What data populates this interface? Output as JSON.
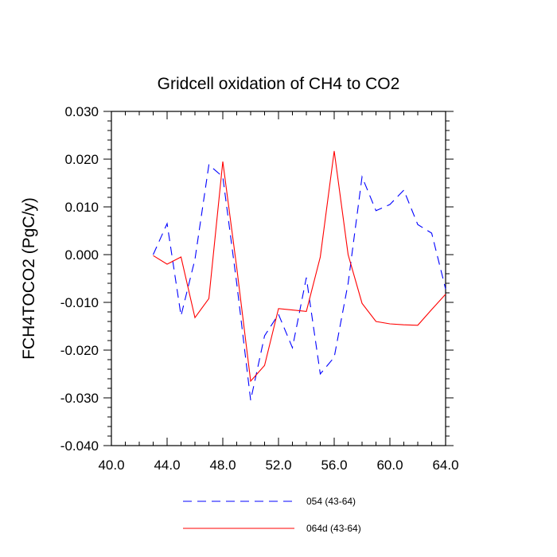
{
  "chart_data": {
    "type": "line",
    "title": "Gridcell oxidation of CH4 to CO2",
    "xlabel": "",
    "ylabel": "FCH4TOCO2  (PgC/y)",
    "xlim": [
      40,
      64
    ],
    "ylim": [
      -0.04,
      0.03
    ],
    "x_ticks": [
      40,
      44,
      48,
      52,
      56,
      60,
      64
    ],
    "x_tick_labels": [
      "40.0",
      "44.0",
      "48.0",
      "52.0",
      "56.0",
      "60.0",
      "64.0"
    ],
    "y_ticks": [
      -0.04,
      -0.03,
      -0.02,
      -0.01,
      0.0,
      0.01,
      0.02,
      0.03
    ],
    "y_tick_labels": [
      "-0.040",
      "-0.030",
      "-0.020",
      "-0.010",
      "0.000",
      "0.010",
      "0.020",
      "0.030"
    ],
    "grid": false,
    "legend_position": "bottom",
    "series": [
      {
        "name": "054 (43-64)",
        "color": "#0000ff",
        "style": "dashed",
        "x": [
          43,
          44,
          45,
          46,
          47,
          48,
          49,
          50,
          51,
          52,
          53,
          54,
          55,
          56,
          57,
          58,
          59,
          60,
          61,
          62,
          63,
          64
        ],
        "y": [
          0.0,
          0.0065,
          -0.0128,
          -0.001,
          0.0188,
          0.0163,
          -0.006,
          -0.0305,
          -0.017,
          -0.0125,
          -0.0195,
          -0.0048,
          -0.025,
          -0.0215,
          -0.006,
          0.0163,
          0.0092,
          0.0105,
          0.0135,
          0.0063,
          0.0045,
          -0.0072
        ]
      },
      {
        "name": "064d (43-64)",
        "color": "#ff0000",
        "style": "solid",
        "x": [
          43,
          44,
          45,
          46,
          47,
          48,
          49,
          50,
          51,
          52,
          53,
          54,
          55,
          56,
          57,
          58,
          59,
          60,
          61,
          62,
          63,
          64
        ],
        "y": [
          -0.0002,
          -0.002,
          -0.0005,
          -0.0132,
          -0.0092,
          0.0195,
          -0.0027,
          -0.0265,
          -0.0232,
          -0.0113,
          -0.0116,
          -0.0119,
          -0.0005,
          0.0217,
          0.0,
          -0.0102,
          -0.014,
          -0.0145,
          -0.0147,
          -0.0148,
          -0.0115,
          -0.0083
        ]
      }
    ]
  }
}
